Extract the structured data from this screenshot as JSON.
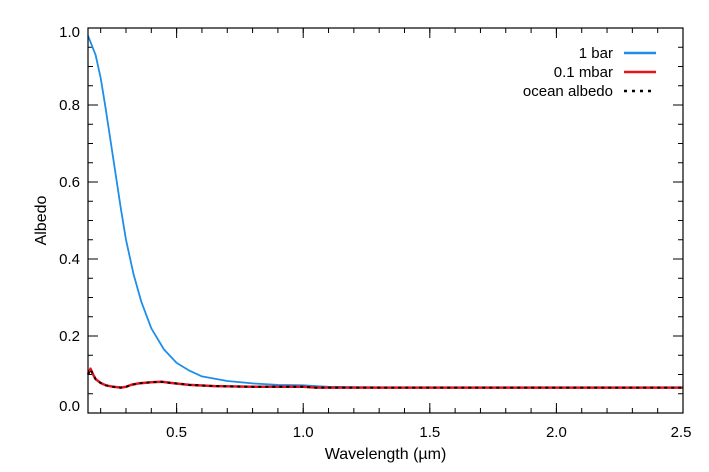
{
  "chart_data": {
    "type": "line",
    "xlabel": "Wavelength (µm)",
    "ylabel": "Albedo",
    "xlim": [
      0.15,
      2.5
    ],
    "ylim": [
      0.0,
      1.0
    ],
    "x_ticks": [
      0.5,
      1.0,
      1.5,
      2.0,
      2.5
    ],
    "x_tick_labels": [
      "0.5",
      "1.0",
      "1.5",
      "2.0",
      "2.5"
    ],
    "y_ticks": [
      0.0,
      0.2,
      0.4,
      0.6,
      0.8,
      1.0
    ],
    "y_tick_labels": [
      "0.0",
      "0.2",
      "0.4",
      "0.6",
      "0.8",
      "1.0"
    ],
    "x_minor_step": 0.1,
    "y_minor_step": 0.05,
    "grid": false,
    "legend_position": "top-right",
    "series": [
      {
        "name": "1 bar",
        "color": "#1f8ee8",
        "style": "solid",
        "x": [
          0.15,
          0.18,
          0.2,
          0.22,
          0.25,
          0.28,
          0.3,
          0.33,
          0.36,
          0.4,
          0.45,
          0.5,
          0.55,
          0.6,
          0.7,
          0.8,
          0.9,
          1.0,
          1.05,
          1.1,
          1.2,
          1.5,
          2.0,
          2.5
        ],
        "y": [
          0.98,
          0.93,
          0.87,
          0.79,
          0.66,
          0.53,
          0.45,
          0.36,
          0.29,
          0.22,
          0.165,
          0.13,
          0.11,
          0.095,
          0.083,
          0.077,
          0.073,
          0.072,
          0.07,
          0.068,
          0.067,
          0.066,
          0.066,
          0.066
        ]
      },
      {
        "name": "0.1 mbar",
        "color": "#e8121b",
        "style": "solid",
        "x": [
          0.15,
          0.16,
          0.17,
          0.18,
          0.2,
          0.22,
          0.25,
          0.28,
          0.3,
          0.32,
          0.35,
          0.4,
          0.44,
          0.48,
          0.55,
          0.65,
          0.8,
          1.0,
          1.05,
          1.2,
          1.5,
          2.0,
          2.5
        ],
        "y": [
          0.1,
          0.115,
          0.1,
          0.088,
          0.078,
          0.072,
          0.068,
          0.066,
          0.068,
          0.073,
          0.077,
          0.08,
          0.081,
          0.078,
          0.073,
          0.07,
          0.068,
          0.068,
          0.066,
          0.066,
          0.066,
          0.066,
          0.066
        ]
      },
      {
        "name": "ocean albedo",
        "color": "#000000",
        "style": "dotted",
        "x": [
          0.15,
          0.16,
          0.17,
          0.18,
          0.2,
          0.22,
          0.25,
          0.28,
          0.3,
          0.32,
          0.35,
          0.4,
          0.44,
          0.48,
          0.55,
          0.65,
          0.8,
          1.0,
          1.05,
          1.2,
          1.5,
          2.0,
          2.5
        ],
        "y": [
          0.1,
          0.113,
          0.1,
          0.088,
          0.078,
          0.072,
          0.068,
          0.066,
          0.068,
          0.073,
          0.077,
          0.08,
          0.081,
          0.078,
          0.073,
          0.07,
          0.068,
          0.068,
          0.066,
          0.066,
          0.066,
          0.066,
          0.066
        ]
      }
    ]
  }
}
